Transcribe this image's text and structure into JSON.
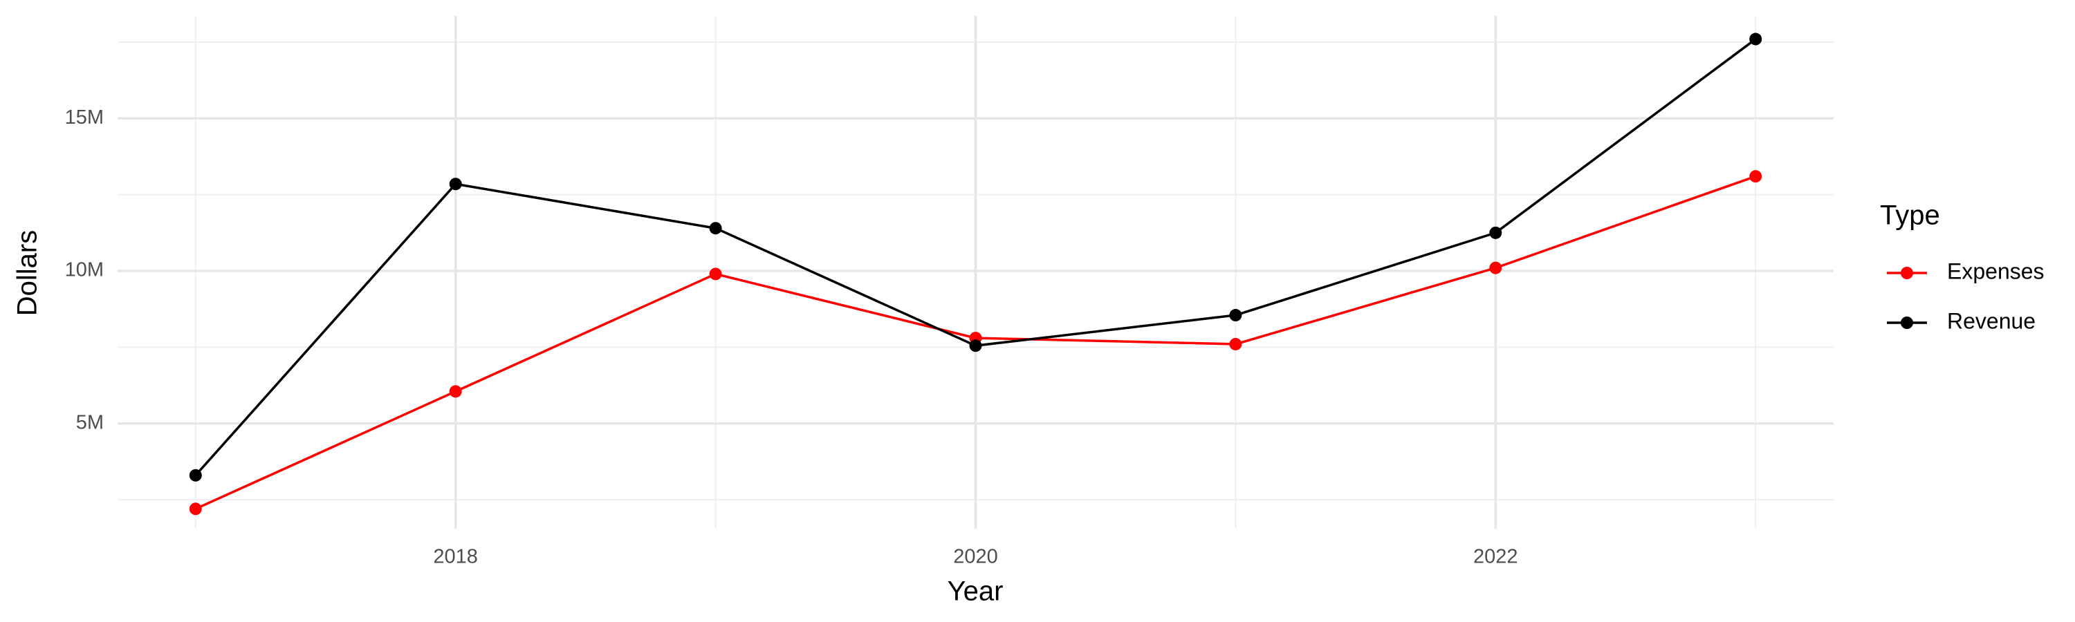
{
  "chart_data": {
    "type": "line",
    "x_label": "Year",
    "y_label": "Dollars",
    "legend_title": "Type",
    "x": [
      2017,
      2018,
      2019,
      2020,
      2021,
      2022,
      2023
    ],
    "series": [
      {
        "name": "Expenses",
        "color": "#ff0000",
        "values": [
          2200000,
          6050000,
          9900000,
          7800000,
          7600000,
          10100000,
          13100000
        ]
      },
      {
        "name": "Revenue",
        "color": "#000000",
        "values": [
          3300000,
          12850000,
          11400000,
          7550000,
          8550000,
          11250000,
          17600000
        ]
      }
    ],
    "xlim": [
      2016.7,
      2023.3
    ],
    "xticks": [
      2018,
      2020,
      2022
    ],
    "minor_xticks": [
      2017,
      2019,
      2021,
      2023
    ],
    "ylim": [
      1550000,
      18360000
    ],
    "yticks": [
      {
        "value": 5000000,
        "label": "5M"
      },
      {
        "value": 10000000,
        "label": "10M"
      },
      {
        "value": 15000000,
        "label": "15M"
      }
    ],
    "minor_yticks": [
      2500000,
      7500000,
      12500000,
      17500000
    ],
    "grid": true,
    "legend_position": "right"
  }
}
